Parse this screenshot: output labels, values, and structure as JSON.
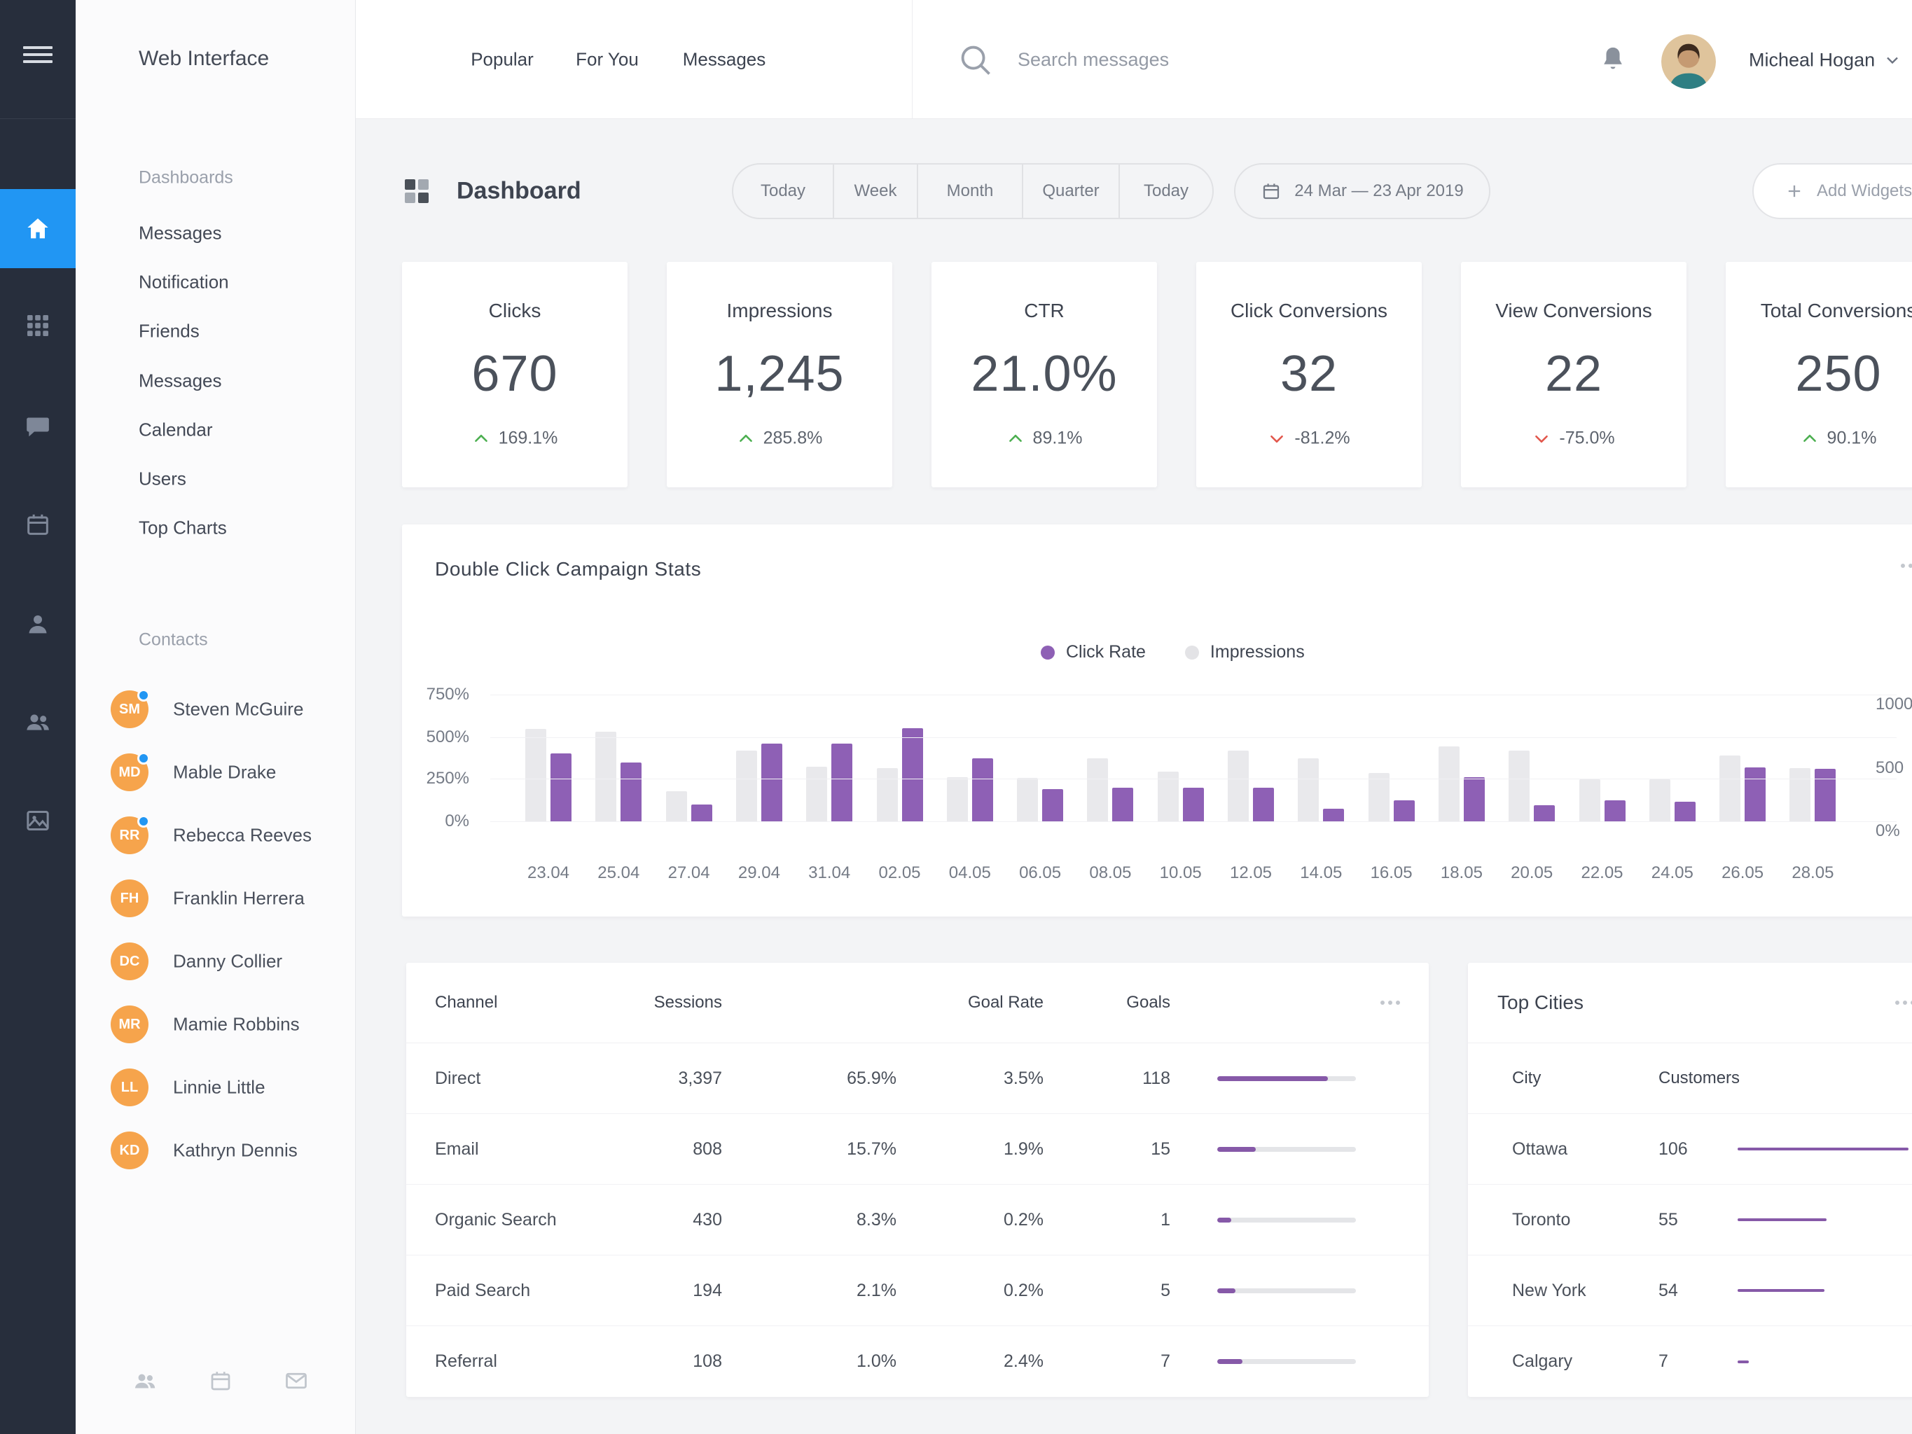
{
  "app": {
    "title": "Web Interface"
  },
  "rail": {
    "icons": [
      "menu",
      "home",
      "apps",
      "messages",
      "calendar",
      "profile",
      "contacts",
      "gallery"
    ],
    "active": "home"
  },
  "sidebar": {
    "section_dashboards": "Dashboards",
    "items": [
      "Messages",
      "Notification",
      "Friends",
      "Messages",
      "Calendar",
      "Users",
      "Top Charts"
    ],
    "section_contacts": "Contacts",
    "contacts": [
      {
        "initials": "SM",
        "name": "Steven McGuire",
        "online": true
      },
      {
        "initials": "MD",
        "name": "Mable Drake",
        "online": true
      },
      {
        "initials": "RR",
        "name": "Rebecca Reeves",
        "online": true
      },
      {
        "initials": "FH",
        "name": "Franklin Herrera",
        "online": false
      },
      {
        "initials": "DC",
        "name": "Danny Collier",
        "online": false
      },
      {
        "initials": "MR",
        "name": "Mamie Robbins",
        "online": false
      },
      {
        "initials": "LL",
        "name": "Linnie Little",
        "online": false
      },
      {
        "initials": "KD",
        "name": "Kathryn Dennis",
        "online": false
      }
    ],
    "footer_icons": [
      "contacts",
      "calendar",
      "mail"
    ]
  },
  "header": {
    "nav": [
      "Popular",
      "For You",
      "Messages"
    ],
    "search_placeholder": "Search messages",
    "user_name": "Micheal Hogan"
  },
  "toolbar": {
    "page_title": "Dashboard",
    "range_tabs": [
      "Today",
      "Week",
      "Month",
      "Quarter",
      "Today"
    ],
    "date_range": "24 Mar — 23 Apr 2019",
    "add_widgets_label": "Add Widgets"
  },
  "kpis": [
    {
      "label": "Clicks",
      "value": "670",
      "delta": "169.1%",
      "trend": "up"
    },
    {
      "label": "Impressions",
      "value": "1,245",
      "delta": "285.8%",
      "trend": "up"
    },
    {
      "label": "CTR",
      "value": "21.0%",
      "delta": "89.1%",
      "trend": "up"
    },
    {
      "label": "Click Conversions",
      "value": "32",
      "delta": "-81.2%",
      "trend": "down"
    },
    {
      "label": "View Conversions",
      "value": "22",
      "delta": "-75.0%",
      "trend": "down"
    },
    {
      "label": "Total Conversions",
      "value": "250",
      "delta": "90.1%",
      "trend": "up"
    }
  ],
  "chart_data": {
    "type": "bar",
    "title": "Double Click Campaign Stats",
    "legend_position": "top-center",
    "grid": true,
    "categories": [
      "23.04",
      "25.04",
      "27.04",
      "29.04",
      "31.04",
      "02.05",
      "04.05",
      "06.05",
      "08.05",
      "10.05",
      "12.05",
      "14.05",
      "16.05",
      "18.05",
      "20.05",
      "22.05",
      "24.05",
      "26.05",
      "28.05"
    ],
    "series": [
      {
        "name": "Click Rate",
        "axis": "left",
        "unit": "%",
        "color": "#8e60b5",
        "values": [
          400,
          350,
          100,
          460,
          460,
          550,
          375,
          190,
          200,
          200,
          200,
          75,
          125,
          260,
          95,
          125,
          115,
          320,
          310
        ]
      },
      {
        "name": "Impressions",
        "axis": "right",
        "color": "#e9e9ec",
        "values": [
          730,
          710,
          240,
          560,
          430,
          420,
          350,
          340,
          500,
          390,
          560,
          500,
          380,
          590,
          560,
          330,
          330,
          520,
          420
        ]
      }
    ],
    "left_axis": {
      "ticks": [
        "750%",
        "500%",
        "250%",
        "0%"
      ],
      "min": 0,
      "max": 750
    },
    "right_axis": {
      "ticks": [
        "1000",
        "500",
        "0%"
      ],
      "min": 0,
      "max": 1000
    }
  },
  "channels": {
    "headers": [
      "Channel",
      "Sessions",
      "",
      "Goal Rate",
      "Goals"
    ],
    "rows": [
      {
        "channel": "Direct",
        "sessions": "3,397",
        "share": "65.9%",
        "goal_rate": "3.5%",
        "goals": "118",
        "progress": 80
      },
      {
        "channel": "Email",
        "sessions": "808",
        "share": "15.7%",
        "goal_rate": "1.9%",
        "goals": "15",
        "progress": 28
      },
      {
        "channel": "Organic Search",
        "sessions": "430",
        "share": "8.3%",
        "goal_rate": "0.2%",
        "goals": "1",
        "progress": 10
      },
      {
        "channel": "Paid Search",
        "sessions": "194",
        "share": "2.1%",
        "goal_rate": "0.2%",
        "goals": "5",
        "progress": 13
      },
      {
        "channel": "Referral",
        "sessions": "108",
        "share": "1.0%",
        "goal_rate": "2.4%",
        "goals": "7",
        "progress": 18
      }
    ]
  },
  "top_cities": {
    "title": "Top Cities",
    "headers": [
      "City",
      "Customers"
    ],
    "rows": [
      {
        "city": "Ottawa",
        "customers": "106"
      },
      {
        "city": "Toronto",
        "customers": "55"
      },
      {
        "city": "New York",
        "customers": "54"
      },
      {
        "city": "Calgary",
        "customers": "7"
      }
    ]
  },
  "colors": {
    "accent_blue": "#2196f3",
    "purple": "#8e60b5",
    "purple_dark": "#8659a8",
    "bar_gray": "#e9e9ec",
    "green_up": "#4caf50",
    "red_down": "#e2574c",
    "avatar_orange": "#f6a44c",
    "rail_bg": "#272e3c"
  }
}
